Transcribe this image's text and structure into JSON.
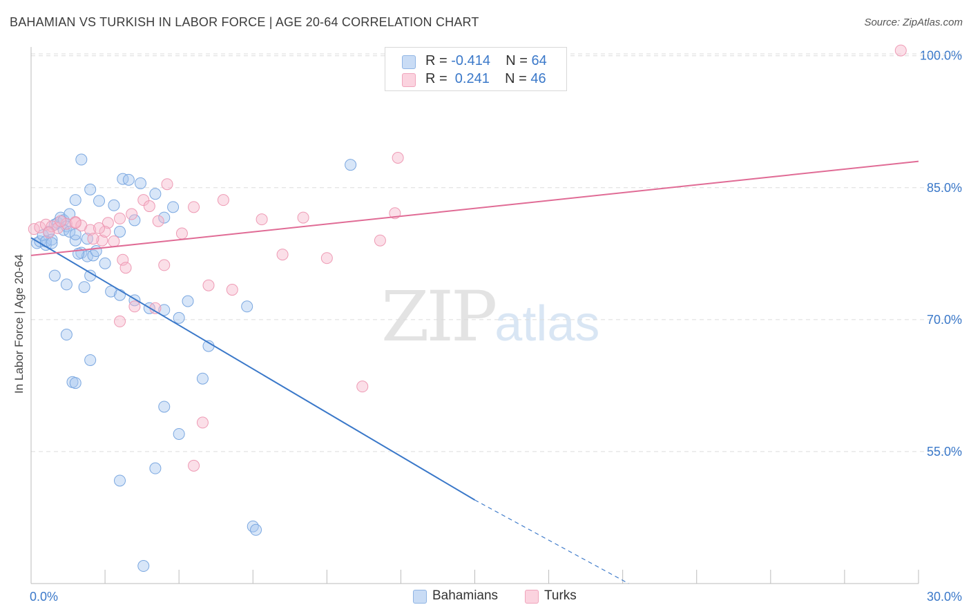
{
  "title": "BAHAMIAN VS TURKISH IN LABOR FORCE | AGE 20-64 CORRELATION CHART",
  "source": "Source: ZipAtlas.com",
  "watermark": {
    "zip": "ZIP",
    "atlas": "atlas"
  },
  "legend": {
    "rows": [
      {
        "r_label": "R = ",
        "r_value": "-0.414",
        "n_label": "N = ",
        "n_value": "64",
        "color": "#a9c8ef"
      },
      {
        "r_label": "R = ",
        "r_value": " 0.241",
        "n_label": "N = ",
        "n_value": "46",
        "color": "#f6b8cb"
      }
    ]
  },
  "bottom_legend": [
    {
      "label": "Bahamians",
      "color": "#a9c8ef"
    },
    {
      "label": "Turks",
      "color": "#f6b8cb"
    }
  ],
  "chart_data": {
    "type": "scatter",
    "title": "BAHAMIAN VS TURKISH IN LABOR FORCE | AGE 20-64 CORRELATION CHART",
    "xlabel": "",
    "ylabel": "In Labor Force | Age 20-64",
    "xlim": [
      0,
      30
    ],
    "ylim": [
      40,
      101
    ],
    "x_tick_labels": [
      "0.0%",
      "30.0%"
    ],
    "y_ticks": [
      55,
      70,
      85,
      100
    ],
    "y_tick_labels": [
      "55.0%",
      "70.0%",
      "85.0%",
      "100.0%"
    ],
    "grid": true,
    "colors": {
      "bahamians": "#3a78c9",
      "turks": "#e06b95"
    },
    "series": [
      {
        "name": "Bahamians",
        "points": [
          [
            0.2,
            78.7
          ],
          [
            0.3,
            78.9
          ],
          [
            0.4,
            79.6
          ],
          [
            0.5,
            78.5
          ],
          [
            0.6,
            80.0
          ],
          [
            0.7,
            79.1
          ],
          [
            0.8,
            80.8
          ],
          [
            0.9,
            81.0
          ],
          [
            1.0,
            81.6
          ],
          [
            1.1,
            81.3
          ],
          [
            1.2,
            80.6
          ],
          [
            0.5,
            78.9
          ],
          [
            0.7,
            78.7
          ],
          [
            1.5,
            79.0
          ],
          [
            1.7,
            77.6
          ],
          [
            1.9,
            77.2
          ],
          [
            2.1,
            77.3
          ],
          [
            1.6,
            77.5
          ],
          [
            1.1,
            80.2
          ],
          [
            1.3,
            80.0
          ],
          [
            1.5,
            79.7
          ],
          [
            1.9,
            79.2
          ],
          [
            2.2,
            77.8
          ],
          [
            2.5,
            76.4
          ],
          [
            3.0,
            80.0
          ],
          [
            3.5,
            81.3
          ],
          [
            4.5,
            81.6
          ],
          [
            0.8,
            75.0
          ],
          [
            1.2,
            74.0
          ],
          [
            1.8,
            73.7
          ],
          [
            2.7,
            73.2
          ],
          [
            3.0,
            72.8
          ],
          [
            3.5,
            72.2
          ],
          [
            4.0,
            71.3
          ],
          [
            4.5,
            71.1
          ],
          [
            5.0,
            70.2
          ],
          [
            1.5,
            83.6
          ],
          [
            1.3,
            82.0
          ],
          [
            2.0,
            84.8
          ],
          [
            2.3,
            83.5
          ],
          [
            2.8,
            83.0
          ],
          [
            3.1,
            86.0
          ],
          [
            3.3,
            85.9
          ],
          [
            3.7,
            85.5
          ],
          [
            4.2,
            84.3
          ],
          [
            4.8,
            82.8
          ],
          [
            5.3,
            72.1
          ],
          [
            1.7,
            88.2
          ],
          [
            10.8,
            87.6
          ],
          [
            7.3,
            71.5
          ],
          [
            6.0,
            67.0
          ],
          [
            1.2,
            68.3
          ],
          [
            2.0,
            65.4
          ],
          [
            1.4,
            62.9
          ],
          [
            1.5,
            62.8
          ],
          [
            5.8,
            63.3
          ],
          [
            4.5,
            60.1
          ],
          [
            5.0,
            57.0
          ],
          [
            3.0,
            51.7
          ],
          [
            4.2,
            53.1
          ],
          [
            7.5,
            46.5
          ],
          [
            7.6,
            46.1
          ],
          [
            3.8,
            42.0
          ],
          [
            2.0,
            75.0
          ]
        ]
      },
      {
        "name": "Turks",
        "points": [
          [
            0.1,
            80.3
          ],
          [
            0.3,
            80.5
          ],
          [
            0.5,
            80.8
          ],
          [
            0.7,
            80.6
          ],
          [
            0.9,
            80.4
          ],
          [
            1.2,
            80.9
          ],
          [
            1.5,
            81.1
          ],
          [
            1.7,
            80.7
          ],
          [
            2.0,
            80.2
          ],
          [
            2.4,
            79.0
          ],
          [
            2.6,
            81.0
          ],
          [
            3.0,
            81.5
          ],
          [
            3.4,
            82.0
          ],
          [
            3.8,
            83.6
          ],
          [
            4.0,
            82.9
          ],
          [
            4.3,
            81.2
          ],
          [
            4.6,
            85.4
          ],
          [
            5.1,
            79.8
          ],
          [
            5.5,
            82.8
          ],
          [
            6.5,
            83.6
          ],
          [
            7.8,
            81.4
          ],
          [
            9.2,
            81.6
          ],
          [
            12.3,
            82.1
          ],
          [
            12.4,
            88.4
          ],
          [
            2.1,
            79.2
          ],
          [
            2.5,
            80.0
          ],
          [
            3.1,
            76.8
          ],
          [
            4.5,
            76.2
          ],
          [
            3.2,
            75.9
          ],
          [
            6.0,
            73.9
          ],
          [
            6.8,
            73.4
          ],
          [
            8.5,
            77.4
          ],
          [
            10.0,
            77.0
          ],
          [
            11.8,
            79.0
          ],
          [
            1.0,
            81.2
          ],
          [
            3.5,
            71.5
          ],
          [
            4.2,
            71.3
          ],
          [
            3.0,
            69.8
          ],
          [
            5.8,
            58.3
          ],
          [
            5.5,
            53.4
          ],
          [
            11.2,
            62.4
          ],
          [
            1.5,
            81.0
          ],
          [
            2.8,
            78.9
          ],
          [
            0.6,
            79.9
          ],
          [
            2.3,
            80.4
          ],
          [
            29.4,
            100.6
          ]
        ]
      }
    ],
    "trend_lines": [
      {
        "series": "Bahamians",
        "solid_from": [
          0,
          79.3
        ],
        "solid_to": [
          15,
          49.5
        ],
        "dashed_to": [
          20.2,
          40.0
        ]
      },
      {
        "series": "Turks",
        "from": [
          0,
          77.3
        ],
        "to": [
          30,
          88.0
        ]
      }
    ]
  }
}
